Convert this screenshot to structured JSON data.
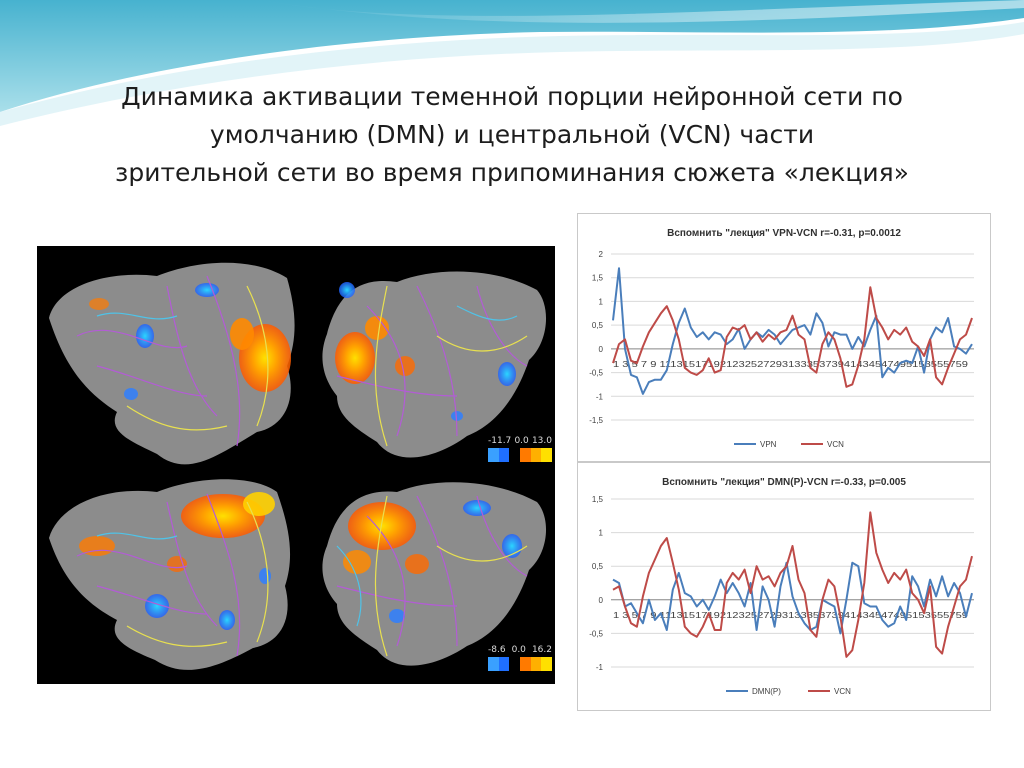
{
  "slide": {
    "title_lines": [
      "Динамика активации теменной порции нейронной сети по",
      "умолчанию (DMN) и центральной (VCN) части",
      "зрительной сети во время припоминания сюжета «лекция»"
    ]
  },
  "brain_panel": {
    "scales": [
      {
        "min": "-11.7",
        "zero": "0.0",
        "max": "13.0"
      },
      {
        "min": "-8.6",
        "zero": "0.0",
        "max": "16.2"
      }
    ]
  },
  "colors": {
    "series_blue": "#4a7ebb",
    "series_red": "#be4b48",
    "grid": "#d9d9d9",
    "brain_gray": "#8c8c8c",
    "activation_warm": "#ff7a00",
    "activation_cold": "#2f7fff"
  },
  "chart_data": [
    {
      "type": "line",
      "title": "Вспомнить \"лекция\" VPN-VCN r=-0.31, p=0.0012",
      "ylim": [
        -1.5,
        2
      ],
      "yticks": [
        "2",
        "1,5",
        "1",
        "0,5",
        "0",
        "-0,5",
        "-1",
        "-1,5"
      ],
      "ytick_values": [
        2,
        1.5,
        1,
        0.5,
        0,
        -0.5,
        -1,
        -1.5
      ],
      "x_axis_labels": "1 3 5 7 9 11131517192123252729313335373941434547495153555759",
      "grid": true,
      "legend_position": "bottom",
      "series": [
        {
          "name": "VPN",
          "color": "#4a7ebb",
          "values": [
            0.6,
            1.7,
            0.0,
            -0.55,
            -0.6,
            -0.95,
            -0.7,
            -0.65,
            -0.65,
            -0.45,
            0.1,
            0.55,
            0.85,
            0.45,
            0.25,
            0.35,
            0.2,
            0.35,
            0.3,
            0.1,
            0.2,
            0.42,
            0.0,
            0.2,
            0.35,
            0.25,
            0.4,
            0.3,
            0.1,
            0.25,
            0.4,
            0.45,
            0.5,
            0.3,
            0.75,
            0.55,
            0.05,
            0.35,
            0.3,
            0.3,
            0.0,
            0.25,
            0.05,
            0.4,
            0.7,
            -0.6,
            -0.4,
            -0.5,
            -0.3,
            -0.25,
            -0.3,
            0.05,
            -0.5,
            0.2,
            0.45,
            0.35,
            0.65,
            0.05,
            0.0,
            -0.1,
            0.1
          ]
        },
        {
          "name": "VCN",
          "color": "#be4b48",
          "values": [
            -0.3,
            0.1,
            0.2,
            -0.25,
            -0.3,
            0.05,
            0.35,
            0.55,
            0.75,
            0.9,
            0.6,
            0.2,
            -0.4,
            -0.5,
            -0.55,
            -0.45,
            -0.2,
            -0.5,
            -0.45,
            0.25,
            0.45,
            0.4,
            0.5,
            0.2,
            0.35,
            0.15,
            0.3,
            0.2,
            0.35,
            0.4,
            0.7,
            0.3,
            0.2,
            -0.4,
            -0.5,
            0.1,
            0.35,
            0.2,
            -0.2,
            -0.8,
            -0.75,
            -0.35,
            0.2,
            1.3,
            0.65,
            0.45,
            0.2,
            0.4,
            0.3,
            0.45,
            0.15,
            0.05,
            -0.15,
            0.2,
            -0.6,
            -0.75,
            -0.4,
            -0.1,
            0.2,
            0.3,
            0.65
          ]
        }
      ]
    },
    {
      "type": "line",
      "title": "Вспомнить \"лекция\" DMN(P)-VCN r=-0.33, p=0.005",
      "ylim": [
        -1,
        1.5
      ],
      "yticks": [
        "1,5",
        "1",
        "0,5",
        "0",
        "-0,5",
        "-1"
      ],
      "ytick_values": [
        1.5,
        1,
        0.5,
        0,
        -0.5,
        -1
      ],
      "x_axis_labels": "1 3 5 7 9 11131517192123252729313335373941434547495153555759",
      "grid": true,
      "legend_position": "bottom",
      "series": [
        {
          "name": "DMN(P)",
          "color": "#4a7ebb",
          "values": [
            0.3,
            0.25,
            -0.1,
            -0.05,
            -0.2,
            -0.35,
            0.0,
            -0.3,
            -0.2,
            -0.45,
            0.15,
            0.4,
            0.1,
            0.05,
            -0.1,
            0.0,
            -0.15,
            0.05,
            0.3,
            0.1,
            0.25,
            0.1,
            -0.1,
            0.25,
            -0.45,
            0.2,
            0.0,
            -0.4,
            0.2,
            0.55,
            0.05,
            -0.2,
            -0.35,
            -0.45,
            -0.4,
            0.0,
            -0.05,
            -0.1,
            -0.5,
            0.0,
            0.55,
            0.5,
            -0.05,
            -0.1,
            -0.1,
            -0.3,
            -0.4,
            -0.35,
            -0.1,
            -0.3,
            0.35,
            0.2,
            -0.1,
            0.3,
            0.05,
            0.35,
            0.05,
            0.25,
            0.1,
            -0.25,
            0.1
          ]
        },
        {
          "name": "VCN",
          "color": "#be4b48",
          "values": [
            0.15,
            0.2,
            -0.1,
            -0.35,
            -0.4,
            0.05,
            0.4,
            0.6,
            0.8,
            0.92,
            0.55,
            0.15,
            -0.4,
            -0.5,
            -0.55,
            -0.4,
            -0.2,
            -0.45,
            -0.45,
            0.25,
            0.4,
            0.3,
            0.45,
            0.1,
            0.5,
            0.3,
            0.35,
            0.2,
            0.4,
            0.5,
            0.8,
            0.3,
            0.1,
            -0.45,
            -0.55,
            0.0,
            0.3,
            0.2,
            -0.25,
            -0.85,
            -0.75,
            -0.3,
            0.25,
            1.3,
            0.7,
            0.45,
            0.25,
            0.4,
            0.3,
            0.45,
            0.1,
            0.0,
            -0.2,
            0.2,
            -0.7,
            -0.8,
            -0.4,
            -0.1,
            0.2,
            0.3,
            0.65
          ]
        }
      ]
    }
  ]
}
